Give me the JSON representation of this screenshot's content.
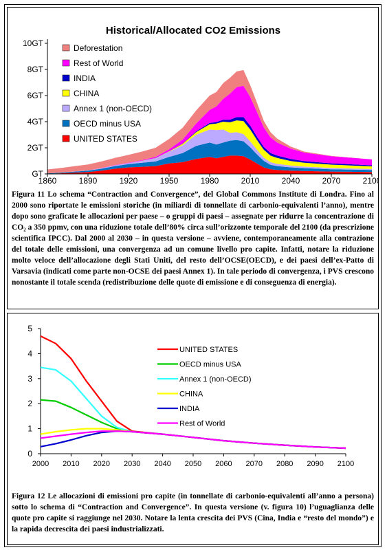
{
  "figure1": {
    "caption": "Figura 11  Lo schema “Contraction and Convergence”, del Global Commons Institute di Londra. Fino al 2000 sono riportate le emissioni storiche (in miliardi di tonnellate di carbonio-equivalenti l’anno), mentre dopo sono graficate le allocazioni per paese – o gruppi di paesi – assegnate per ridurre la concentrazione di CO₂ a 350 ppmv, con una riduzione totale dell’80% circa sull’orizzonte temporale del 2100 (da prescrizione scientifica IPCC). Dal 2000 al 2030 – in questa versione – avviene, contemporaneamente alla contrazione del totale delle emissioni, una convergenza ad un comune livello pro capite. Infatti, notare la riduzione molto veloce dell’allocazione degli Stati Uniti, del resto dell’OCSE(OECD), e dei paesi dell’ex-Patto di Varsavia (indicati come parte non-OCSE dei paesi Annex 1). In tale periodo di convergenza, i PVS crescono nonostante il totale scenda (redistribuzione delle quote di emissione e di conseguenza di energia)."
  },
  "figure2": {
    "caption": "Figura 12  Le allocazioni di emissioni pro capite (in tonnellate di carbonio-equivalenti all’anno a persona) sotto lo schema di “Contraction and Convergence”. In questa versione (v. figura 10) l’uguaglianza delle quote pro capite si raggiunge nel 2030. Notare la lenta crescita dei PVS (Cina, India e “resto del mondo”) e la rapida decrescita dei paesi industrializzati."
  },
  "chart_data": [
    {
      "type": "area",
      "title": "Historical/Allocated CO2 Emissions",
      "xlabel": "",
      "ylabel": "",
      "x": [
        1860,
        1870,
        1880,
        1890,
        1900,
        1910,
        1920,
        1930,
        1940,
        1950,
        1960,
        1970,
        1980,
        1985,
        1990,
        1995,
        2000,
        2005,
        2010,
        2015,
        2020,
        2025,
        2030,
        2040,
        2050,
        2070,
        2100
      ],
      "xticks": [
        1860,
        1890,
        1920,
        1950,
        1980,
        2010,
        2040,
        2070,
        2100
      ],
      "xtick_labels": [
        "1860",
        "1890",
        "1920",
        "1950",
        "1980",
        "2010",
        "2040",
        "2070",
        "2100"
      ],
      "yticks": [
        0,
        2,
        4,
        6,
        8,
        10
      ],
      "ytick_labels": [
        "GT",
        "2GT",
        "4GT",
        "6GT",
        "8GT",
        "10GT"
      ],
      "xlim": [
        1860,
        2100
      ],
      "ylim": [
        0,
        10
      ],
      "legend_position": "top-left",
      "series": [
        {
          "name": "UNITED STATES",
          "color": "#ff0000",
          "values": [
            0.02,
            0.05,
            0.1,
            0.15,
            0.25,
            0.4,
            0.5,
            0.55,
            0.6,
            0.8,
            0.9,
            1.15,
            1.3,
            1.2,
            1.3,
            1.4,
            1.4,
            1.35,
            1.1,
            0.8,
            0.5,
            0.35,
            0.3,
            0.25,
            0.22,
            0.18,
            0.15
          ]
        },
        {
          "name": "OECD minus USA",
          "color": "#0070c0",
          "values": [
            0.02,
            0.05,
            0.08,
            0.1,
            0.15,
            0.2,
            0.25,
            0.3,
            0.35,
            0.5,
            0.7,
            1.0,
            1.1,
            1.05,
            1.1,
            1.15,
            1.2,
            1.15,
            0.95,
            0.7,
            0.5,
            0.35,
            0.3,
            0.25,
            0.22,
            0.18,
            0.15
          ]
        },
        {
          "name": "Annex 1 (non-OECD)",
          "color": "#bbaaff",
          "values": [
            0.0,
            0.0,
            0.01,
            0.02,
            0.04,
            0.06,
            0.08,
            0.15,
            0.25,
            0.4,
            0.6,
            0.85,
            1.0,
            1.1,
            1.0,
            0.6,
            0.6,
            0.55,
            0.45,
            0.35,
            0.25,
            0.2,
            0.17,
            0.14,
            0.12,
            0.1,
            0.08
          ]
        },
        {
          "name": "CHINA",
          "color": "#ffff00",
          "values": [
            0.0,
            0.0,
            0.0,
            0.0,
            0.0,
            0.0,
            0.0,
            0.01,
            0.01,
            0.02,
            0.1,
            0.2,
            0.4,
            0.5,
            0.6,
            0.8,
            0.9,
            1.0,
            0.9,
            0.75,
            0.6,
            0.5,
            0.45,
            0.35,
            0.3,
            0.25,
            0.2
          ]
        },
        {
          "name": "INDIA",
          "color": "#0000cc",
          "values": [
            0.0,
            0.0,
            0.0,
            0.0,
            0.0,
            0.0,
            0.0,
            0.0,
            0.01,
            0.01,
            0.03,
            0.06,
            0.1,
            0.12,
            0.15,
            0.2,
            0.25,
            0.3,
            0.3,
            0.25,
            0.22,
            0.2,
            0.18,
            0.15,
            0.12,
            0.1,
            0.08
          ]
        },
        {
          "name": "Rest of World",
          "color": "#ff00ff",
          "values": [
            0.0,
            0.0,
            0.0,
            0.0,
            0.01,
            0.02,
            0.03,
            0.05,
            0.08,
            0.15,
            0.3,
            0.6,
            1.0,
            1.2,
            1.6,
            2.0,
            2.3,
            2.4,
            2.2,
            1.9,
            1.5,
            1.2,
            1.0,
            0.8,
            0.65,
            0.55,
            0.45
          ]
        },
        {
          "name": "Deforestation",
          "color": "#f08080",
          "values": [
            0.3,
            0.35,
            0.4,
            0.45,
            0.5,
            0.55,
            0.6,
            0.65,
            0.7,
            0.8,
            0.9,
            1.0,
            1.1,
            1.1,
            1.2,
            1.2,
            1.2,
            1.2,
            0.9,
            0.7,
            0.5,
            0.4,
            0.3,
            0.15,
            0.08,
            0.02,
            0.0
          ]
        }
      ]
    },
    {
      "type": "line",
      "title": "",
      "xlabel": "",
      "ylabel": "",
      "x": [
        2000,
        2005,
        2010,
        2015,
        2020,
        2025,
        2030,
        2040,
        2050,
        2060,
        2070,
        2080,
        2090,
        2100
      ],
      "xticks": [
        2000,
        2010,
        2020,
        2030,
        2040,
        2050,
        2060,
        2070,
        2080,
        2090,
        2100
      ],
      "yticks": [
        0,
        1,
        2,
        3,
        4,
        5
      ],
      "xlim": [
        2000,
        2100
      ],
      "ylim": [
        0,
        5
      ],
      "legend_position": "inside-right",
      "series": [
        {
          "name": "UNITED STATES",
          "color": "#ff0000",
          "values": [
            4.7,
            4.4,
            3.8,
            2.9,
            2.1,
            1.3,
            0.9,
            0.78,
            0.65,
            0.52,
            0.42,
            0.34,
            0.27,
            0.22
          ]
        },
        {
          "name": "OECD minus USA",
          "color": "#00cc00",
          "values": [
            2.15,
            2.1,
            1.85,
            1.55,
            1.25,
            1.0,
            0.88,
            0.78,
            0.65,
            0.52,
            0.42,
            0.34,
            0.27,
            0.22
          ]
        },
        {
          "name": "Annex 1 (non-OECD)",
          "color": "#33ffff",
          "values": [
            3.45,
            3.35,
            2.9,
            2.2,
            1.5,
            1.05,
            0.88,
            0.78,
            0.65,
            0.52,
            0.42,
            0.34,
            0.27,
            0.22
          ]
        },
        {
          "name": "CHINA",
          "color": "#ffff00",
          "values": [
            0.78,
            0.88,
            0.95,
            1.0,
            1.0,
            0.95,
            0.88,
            0.78,
            0.65,
            0.52,
            0.42,
            0.34,
            0.27,
            0.22
          ]
        },
        {
          "name": "INDIA",
          "color": "#0000cc",
          "values": [
            0.28,
            0.4,
            0.55,
            0.72,
            0.85,
            0.9,
            0.88,
            0.78,
            0.65,
            0.52,
            0.42,
            0.34,
            0.27,
            0.22
          ]
        },
        {
          "name": "Rest of World",
          "color": "#ff00ff",
          "values": [
            0.62,
            0.7,
            0.78,
            0.85,
            0.9,
            0.9,
            0.88,
            0.78,
            0.65,
            0.52,
            0.42,
            0.34,
            0.27,
            0.22
          ]
        }
      ]
    }
  ]
}
